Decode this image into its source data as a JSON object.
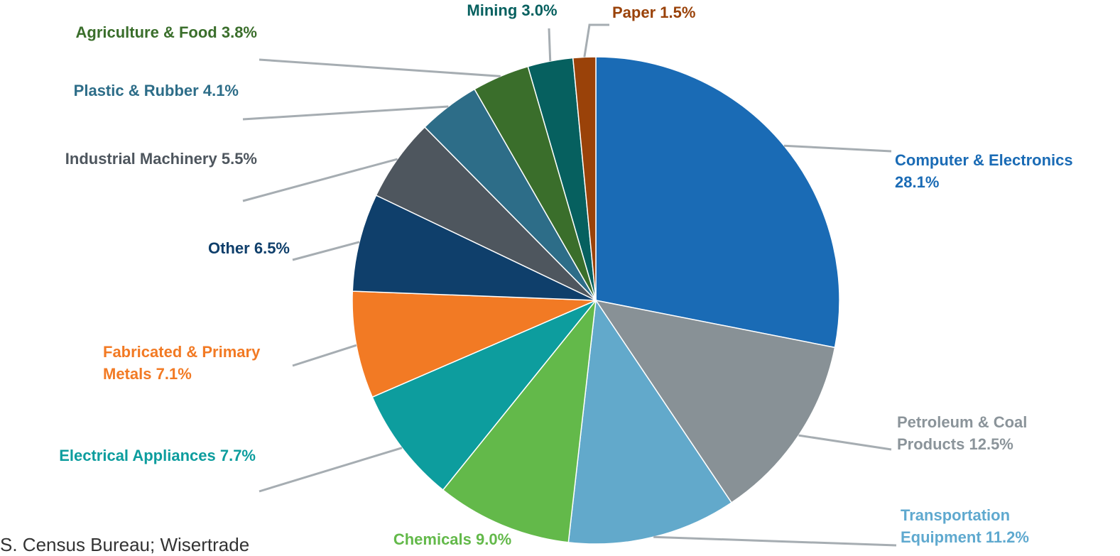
{
  "chart_data": {
    "type": "pie",
    "categories": [
      "Computer & Electronics",
      "Petroleum & Coal Products",
      "Transportation Equipment",
      "Chemicals",
      "Electrical Appliances",
      "Fabricated & Primary Metals",
      "Other",
      "Industrial Machinery",
      "Plastic & Rubber",
      "Agriculture & Food",
      "Mining",
      "Paper"
    ],
    "values": [
      28.1,
      12.5,
      11.2,
      9.0,
      7.7,
      7.1,
      6.5,
      5.5,
      4.1,
      3.8,
      3.0,
      1.5
    ],
    "value_labels": [
      "28.1%",
      "12.5%",
      "11.2%",
      "9.0%",
      "7.7%",
      "7.1%",
      "6.5%",
      "5.5%",
      "4.1%",
      "3.8%",
      "3.0%",
      "1.5%"
    ],
    "colors": [
      "#1a6bb5",
      "#889196",
      "#62a9cb",
      "#63b94a",
      "#0d9d9e",
      "#f27a24",
      "#0f3f6b",
      "#4e565e",
      "#2d6d88",
      "#3a6e2b",
      "#06605f",
      "#9a4209"
    ],
    "label_colors": [
      "#1a6bb5",
      "#8b949a",
      "#5fa9cf",
      "#63b94a",
      "#0d9d9e",
      "#f27a24",
      "#0f3f6b",
      "#4e565e",
      "#2d6d88",
      "#3a6e2b",
      "#06605f",
      "#9a4209"
    ],
    "source": "S. Census Bureau; Wisertrade"
  }
}
